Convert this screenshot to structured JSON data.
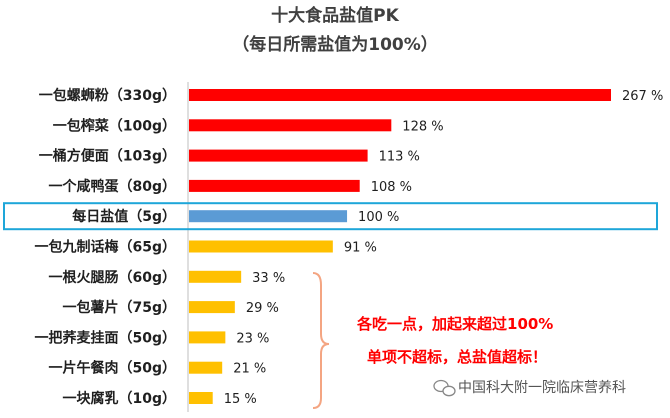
{
  "chart_data": {
    "type": "bar",
    "orientation": "horizontal",
    "title": "十大食品盐值PK",
    "subtitle": "（每日所需盐值为100%）",
    "categories": [
      "一包螺蛳粉（330g）",
      "一包榨菜（100g）",
      "一桶方便面（103g）",
      "一个咸鸭蛋（80g）",
      "每日盐值（5g）",
      "一包九制话梅（65g）",
      "一根火腿肠（60g）",
      "一包薯片（75g）",
      "一把荞麦挂面（50g）",
      "一片午餐肉（50g）",
      "一块腐乳（10g）"
    ],
    "values": [
      267,
      128,
      113,
      108,
      100,
      91,
      33,
      29,
      23,
      21,
      15
    ],
    "data_labels": [
      "267 %",
      "128 %",
      "113 %",
      "108 %",
      "100 %",
      "91 %",
      "33 %",
      "29 %",
      "23 %",
      "21 %",
      "15 %"
    ],
    "bar_colors": [
      "#ff0000",
      "#ff0000",
      "#ff0000",
      "#ff0000",
      "#5b9bd5",
      "#ffc000",
      "#ffc000",
      "#ffc000",
      "#ffc000",
      "#ffc000",
      "#ffc000"
    ],
    "highlight_index": 4,
    "highlight_color": "#1ea6d9",
    "xlim": [
      0,
      267
    ],
    "grid": false,
    "annotation_lines": [
      "各吃一点，加起来超过100%",
      "单项不超标，总盐值超标！"
    ],
    "annotation_color": "#ff0000",
    "brace_color": "#f4a582",
    "brace_covers": [
      6,
      10
    ]
  },
  "watermark": {
    "text": "中国科大附一院临床营养科",
    "icon": "wechat-icon"
  }
}
